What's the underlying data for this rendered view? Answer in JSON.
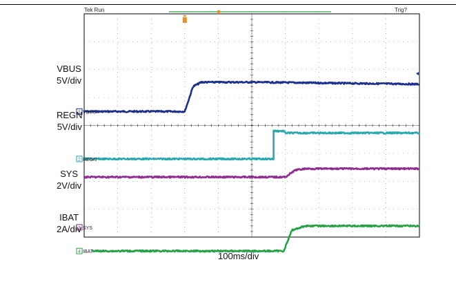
{
  "header": {
    "left": "Tek Run",
    "right": "Trig?"
  },
  "timebase": "100ms/div",
  "labels": {
    "vbus": {
      "name": "VBUS",
      "scale": "5V/div"
    },
    "regn": {
      "name": "REGN",
      "scale": "5V/div"
    },
    "sys": {
      "name": "SYS",
      "scale": "2V/div"
    },
    "ibat": {
      "name": "IBAT",
      "scale": "2A/div"
    }
  },
  "colors": {
    "grid": "#000000",
    "vbus": "#1b2f8c",
    "regn": "#2aa7b0",
    "sys": "#8e2d8f",
    "ibat": "#27a145",
    "trigger": "#e8912c",
    "trigbar": "#2aa04a"
  },
  "chart_data": {
    "type": "line",
    "title": "",
    "xlabel": "100ms/div",
    "ylabel": "",
    "grid": true,
    "x_divisions": 10,
    "y_divisions": 8,
    "x_unit": "div",
    "series": [
      {
        "name": "VBUS",
        "marker": "1",
        "ground_div": 4.5,
        "points": [
          [
            0,
            0
          ],
          [
            3.0,
            0
          ],
          [
            3.25,
            0.9
          ],
          [
            3.5,
            1.05
          ],
          [
            5.0,
            1.05
          ],
          [
            10,
            0.98
          ]
        ]
      },
      {
        "name": "REGN",
        "marker": "2",
        "ground_div": 2.8,
        "points": [
          [
            0,
            0
          ],
          [
            5.65,
            0
          ],
          [
            5.65,
            1.0
          ],
          [
            5.95,
            1.0
          ],
          [
            6.0,
            0.93
          ],
          [
            10,
            0.93
          ]
        ]
      },
      {
        "name": "SYS",
        "marker": "3",
        "ground_div": 0.35,
        "points": [
          [
            0,
            1.8
          ],
          [
            6.0,
            1.8
          ],
          [
            6.3,
            2.05
          ],
          [
            6.6,
            2.1
          ],
          [
            10,
            2.1
          ]
        ]
      },
      {
        "name": "IBAT",
        "marker": "4",
        "ground_div": -0.5,
        "points": [
          [
            0,
            0
          ],
          [
            5.95,
            0
          ],
          [
            6.2,
            0.75
          ],
          [
            6.6,
            0.9
          ],
          [
            10,
            0.9
          ]
        ]
      }
    ]
  }
}
